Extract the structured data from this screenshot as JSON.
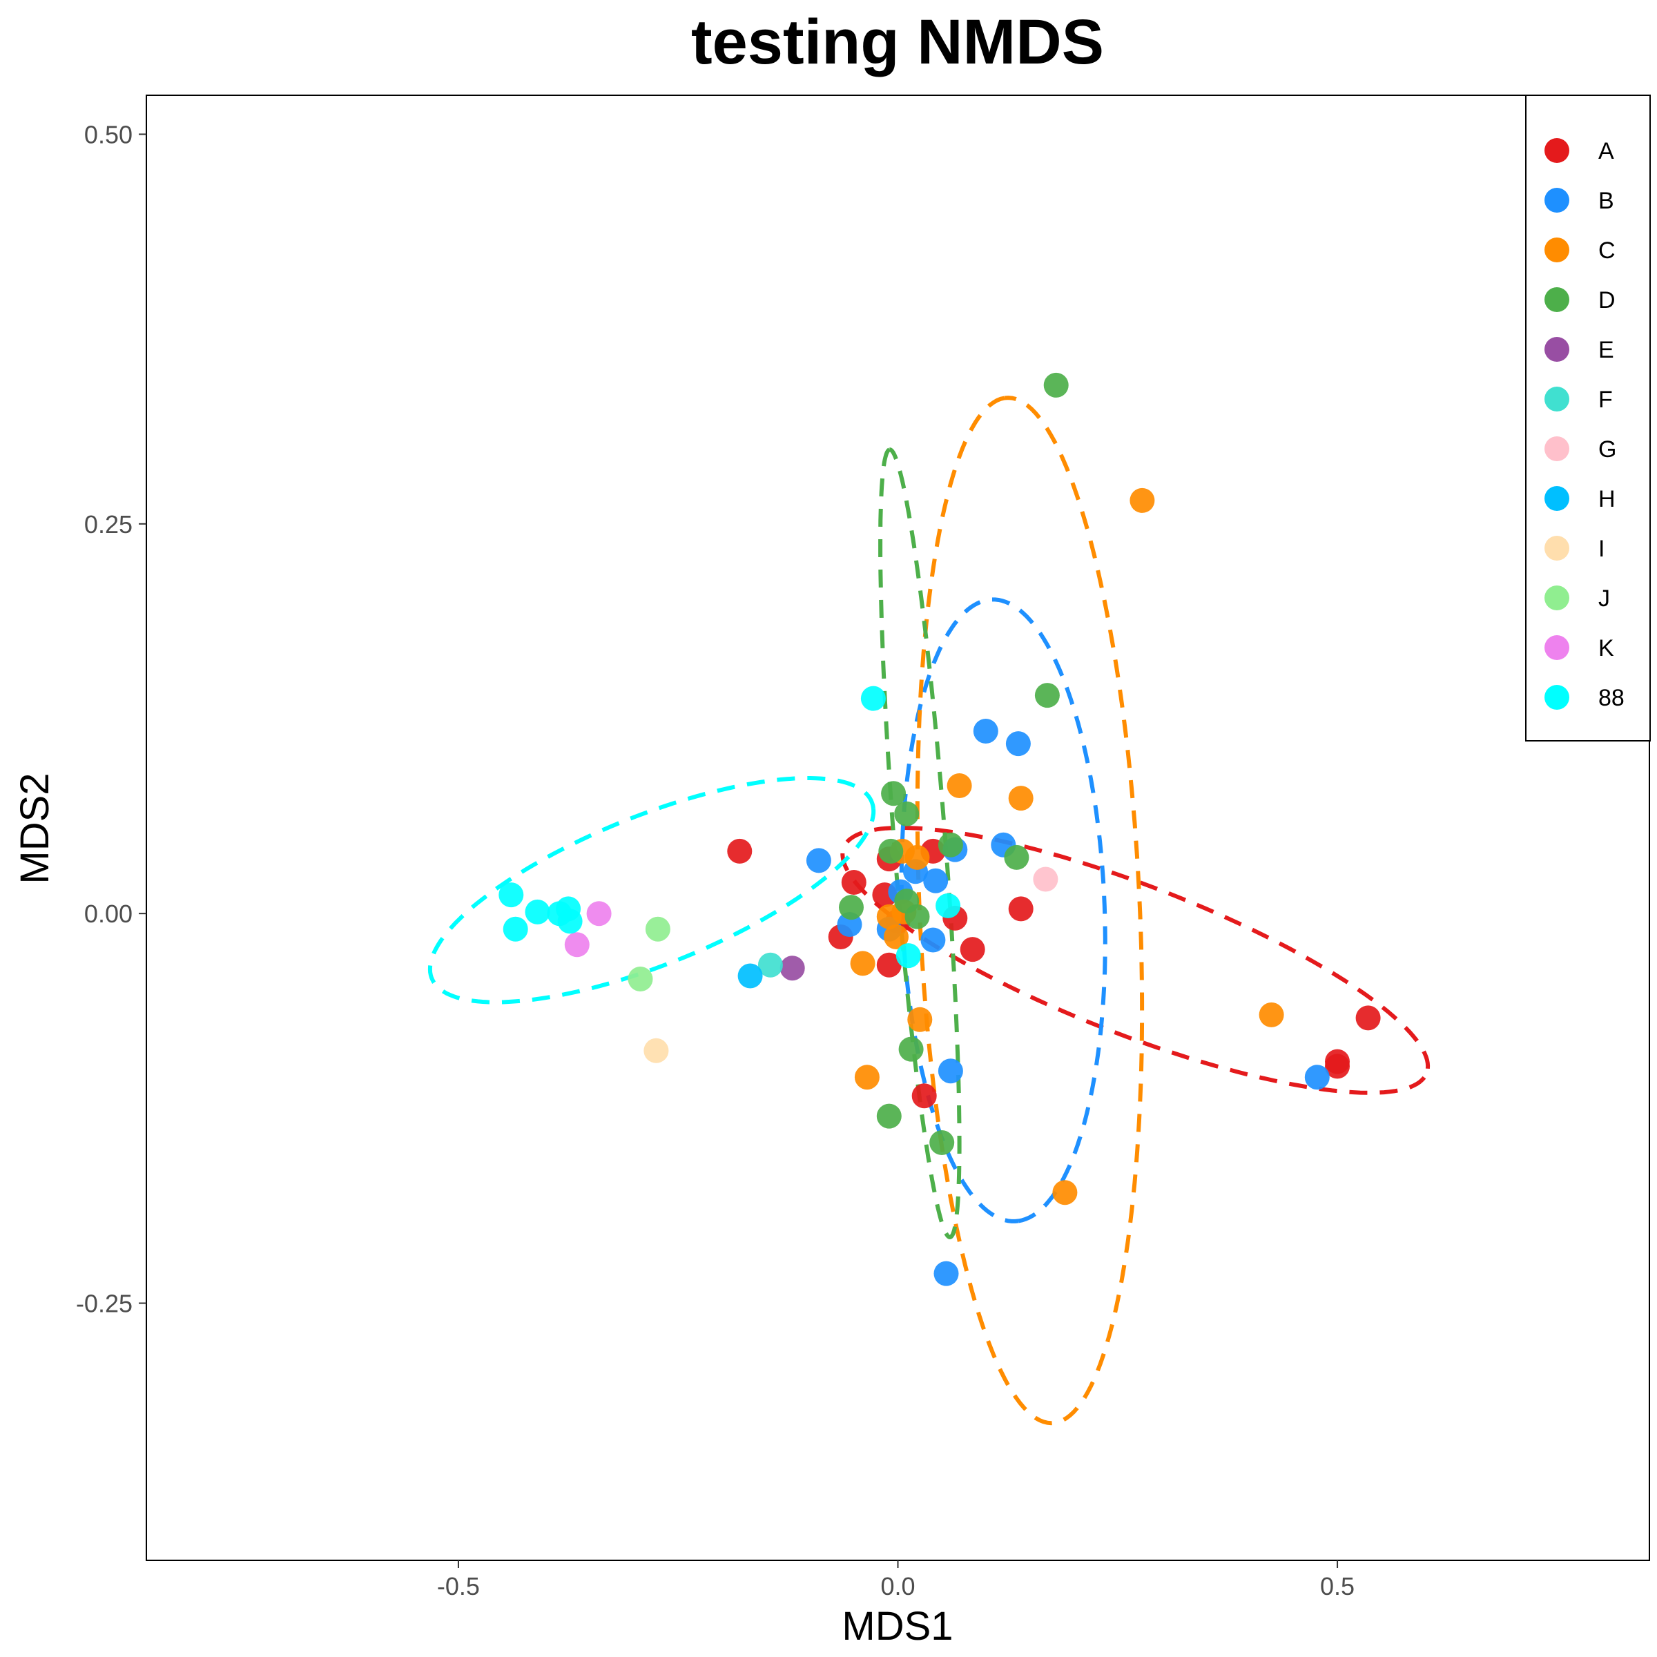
{
  "chart_data": {
    "type": "scatter",
    "title": "testing NMDS",
    "xlabel": "MDS1",
    "ylabel": "MDS2",
    "xlim": [
      -0.855,
      0.855
    ],
    "ylim": [
      -0.415,
      0.525
    ],
    "xticks": [
      {
        "value": -0.5,
        "label": "-0.5"
      },
      {
        "value": 0.0,
        "label": "0.0"
      },
      {
        "value": 0.5,
        "label": "0.5"
      }
    ],
    "yticks": [
      {
        "value": -0.25,
        "label": "-0.25"
      },
      {
        "value": 0.0,
        "label": "0.00"
      },
      {
        "value": 0.25,
        "label": "0.25"
      },
      {
        "value": 0.5,
        "label": "0.50"
      }
    ],
    "grid": false,
    "legend_position": "top-right",
    "series": [
      {
        "name": "A",
        "color": "#E41A1C",
        "points": [
          [
            -0.18,
            0.04
          ],
          [
            -0.05,
            0.02
          ],
          [
            -0.01,
            0.035
          ],
          [
            -0.015,
            0.012
          ],
          [
            0.0,
            -0.005
          ],
          [
            0.04,
            0.04
          ],
          [
            0.065,
            -0.003
          ],
          [
            -0.065,
            -0.015
          ],
          [
            -0.01,
            -0.033
          ],
          [
            0.085,
            -0.023
          ],
          [
            0.14,
            0.003
          ],
          [
            0.535,
            -0.067
          ],
          [
            0.5,
            -0.095
          ],
          [
            0.5,
            -0.098
          ],
          [
            0.03,
            -0.117
          ]
        ]
      },
      {
        "name": "B",
        "color": "#1E90FF",
        "points": [
          [
            -0.09,
            0.034
          ],
          [
            0.1,
            0.117
          ],
          [
            0.137,
            0.109
          ],
          [
            0.12,
            0.044
          ],
          [
            0.065,
            0.041
          ],
          [
            0.043,
            0.021
          ],
          [
            0.003,
            0.014
          ],
          [
            0.02,
            0.027
          ],
          [
            -0.055,
            -0.007
          ],
          [
            -0.01,
            -0.01
          ],
          [
            0.04,
            -0.017
          ],
          [
            0.06,
            -0.101
          ],
          [
            0.477,
            -0.105
          ],
          [
            0.055,
            -0.231
          ]
        ]
      },
      {
        "name": "C",
        "color": "#FF8C00",
        "points": [
          [
            0.278,
            0.265
          ],
          [
            0.07,
            0.082
          ],
          [
            0.14,
            0.074
          ],
          [
            0.022,
            0.036
          ],
          [
            0.005,
            0.04
          ],
          [
            -0.01,
            -0.002
          ],
          [
            0.007,
            0.001
          ],
          [
            -0.002,
            -0.015
          ],
          [
            -0.04,
            -0.032
          ],
          [
            0.025,
            -0.068
          ],
          [
            -0.035,
            -0.105
          ],
          [
            0.425,
            -0.065
          ],
          [
            0.19,
            -0.179
          ]
        ]
      },
      {
        "name": "D",
        "color": "#4DAF4A",
        "points": [
          [
            0.18,
            0.339
          ],
          [
            0.17,
            0.14
          ],
          [
            -0.005,
            0.077
          ],
          [
            0.01,
            0.064
          ],
          [
            0.06,
            0.044
          ],
          [
            -0.008,
            0.04
          ],
          [
            0.135,
            0.036
          ],
          [
            0.01,
            0.008
          ],
          [
            -0.053,
            0.004
          ],
          [
            0.022,
            -0.002
          ],
          [
            0.015,
            -0.087
          ],
          [
            -0.01,
            -0.13
          ],
          [
            0.05,
            -0.147
          ]
        ]
      },
      {
        "name": "E",
        "color": "#984EA3",
        "points": [
          [
            -0.12,
            -0.035
          ]
        ]
      },
      {
        "name": "F",
        "color": "#40E0D0",
        "points": [
          [
            -0.145,
            -0.033
          ]
        ]
      },
      {
        "name": "G",
        "color": "#FFC0CB",
        "points": [
          [
            0.168,
            0.022
          ]
        ]
      },
      {
        "name": "H",
        "color": "#00BFFF",
        "points": [
          [
            -0.168,
            -0.04
          ]
        ]
      },
      {
        "name": "I",
        "color": "#FFDEAD",
        "points": [
          [
            -0.275,
            -0.088
          ]
        ]
      },
      {
        "name": "J",
        "color": "#90EE90",
        "points": [
          [
            -0.273,
            -0.01
          ],
          [
            -0.293,
            -0.042
          ]
        ]
      },
      {
        "name": "K",
        "color": "#EE82EE",
        "points": [
          [
            -0.34,
            0.0
          ],
          [
            -0.365,
            -0.02
          ]
        ]
      },
      {
        "name": "88",
        "color": "#00FFFF",
        "points": [
          [
            -0.44,
            0.012
          ],
          [
            -0.435,
            -0.01
          ],
          [
            -0.41,
            0.001
          ],
          [
            -0.385,
            0.0
          ],
          [
            -0.375,
            0.003
          ],
          [
            -0.373,
            -0.005
          ],
          [
            -0.028,
            0.138
          ],
          [
            0.057,
            0.005
          ],
          [
            0.012,
            -0.027
          ]
        ]
      }
    ],
    "ellipses": [
      {
        "name": "A",
        "color": "#E41A1C",
        "center": [
          0.27,
          -0.03
        ],
        "rx": 0.68,
        "ry": 0.1,
        "angle_deg": -11.8
      },
      {
        "name": "B",
        "color": "#1E90FF",
        "center": [
          0.12,
          0.002
        ],
        "rx": 0.4,
        "ry": 0.23,
        "angle_deg": -85
      },
      {
        "name": "C",
        "color": "#FF8C00",
        "center": [
          0.15,
          0.002
        ],
        "rx": 0.66,
        "ry": 0.25,
        "angle_deg": 95
      },
      {
        "name": "D",
        "color": "#4DAF4A",
        "center": [
          0.025,
          0.045
        ],
        "rx": 0.51,
        "ry": 0.058,
        "angle_deg": 97.8
      },
      {
        "name": "88",
        "color": "#00FFFF",
        "center": [
          -0.28,
          0.015
        ],
        "rx": 0.515,
        "ry": 0.1,
        "angle_deg": 11.8
      }
    ]
  }
}
